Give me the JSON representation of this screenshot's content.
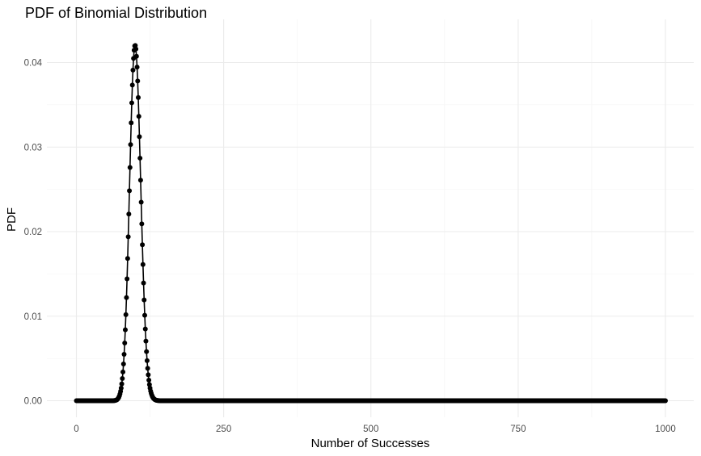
{
  "chart_data": {
    "type": "line",
    "title": "PDF of Binomial Distribution",
    "xlabel": "Number of Successes",
    "ylabel": "PDF",
    "markers": true,
    "n_trials": 1000,
    "success_probability": 0.1,
    "xlim": [
      0,
      1000
    ],
    "ylim": [
      0,
      0.042
    ],
    "x_ticks": [
      0,
      250,
      500,
      750,
      1000
    ],
    "x_tick_labels": [
      "0",
      "250",
      "500",
      "750",
      "1000"
    ],
    "y_ticks": [
      0,
      0.01,
      0.02,
      0.03,
      0.04
    ],
    "y_tick_labels": [
      "0.00",
      "0.01",
      "0.02",
      "0.03",
      "0.04"
    ],
    "grid": true,
    "legend": "none",
    "line_color": "#000000",
    "point_color": "#000000"
  }
}
